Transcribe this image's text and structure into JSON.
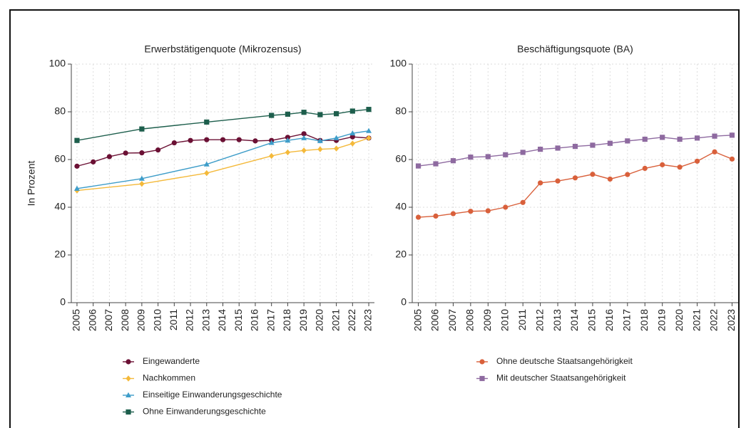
{
  "chart_data": [
    {
      "type": "line",
      "title": "Erwerbstätigenquote (Mikrozensus)",
      "ylabel": "In Prozent",
      "xlim": [
        2004.65,
        2023.35
      ],
      "xticks": [
        2005,
        2006,
        2007,
        2008,
        2009,
        2010,
        2011,
        2012,
        2013,
        2014,
        2015,
        2016,
        2017,
        2018,
        2019,
        2020,
        2021,
        2022,
        2023
      ],
      "ylim": [
        0,
        100
      ],
      "yticks": [
        0,
        20,
        40,
        60,
        80,
        100
      ],
      "grid": true,
      "series": [
        {
          "name": "Eingewanderte",
          "color": "#6b1034",
          "marker": "circle",
          "x": [
            2005,
            2006,
            2007,
            2008,
            2009,
            2010,
            2011,
            2012,
            2013,
            2014,
            2015,
            2016,
            2017,
            2018,
            2019,
            2020,
            2021,
            2022,
            2023
          ],
          "values": [
            57.2,
            59,
            61.2,
            62.7,
            62.8,
            64,
            67,
            68,
            68.3,
            68.3,
            68.3,
            67.8,
            68,
            69.3,
            70.8,
            68,
            68,
            69.5,
            69
          ]
        },
        {
          "name": "Nachkommen",
          "color": "#f4b93a",
          "marker": "diamond",
          "x": [
            2005,
            2009,
            2013,
            2017,
            2018,
            2019,
            2020,
            2021,
            2022,
            2023
          ],
          "values": [
            47,
            49.8,
            54.3,
            61.5,
            63,
            63.8,
            64.3,
            64.6,
            66.7,
            69
          ]
        },
        {
          "name": "Einseitige Einwanderungsgeschichte",
          "color": "#3e9dc9",
          "marker": "triangle",
          "x": [
            2005,
            2009,
            2013,
            2017,
            2018,
            2019,
            2020,
            2021,
            2022,
            2023
          ],
          "values": [
            47.8,
            52,
            58,
            67,
            68,
            69,
            67.8,
            69,
            71,
            72
          ]
        },
        {
          "name": "Ohne Einwanderungsgeschichte",
          "color": "#1d5e4c",
          "marker": "square",
          "x": [
            2005,
            2009,
            2013,
            2017,
            2018,
            2019,
            2020,
            2021,
            2022,
            2023
          ],
          "values": [
            68,
            72.8,
            75.7,
            78.5,
            79,
            79.8,
            78.8,
            79.2,
            80.3,
            81
          ]
        }
      ]
    },
    {
      "type": "line",
      "title": "Beschäftigungsquote (BA)",
      "xlim": [
        2004.65,
        2023.35
      ],
      "xticks": [
        2005,
        2006,
        2007,
        2008,
        2009,
        2010,
        2011,
        2012,
        2013,
        2014,
        2015,
        2016,
        2017,
        2018,
        2019,
        2020,
        2021,
        2022,
        2023
      ],
      "ylim": [
        0,
        100
      ],
      "yticks": [
        0,
        20,
        40,
        60,
        80,
        100
      ],
      "grid": true,
      "series": [
        {
          "name": "Ohne deutsche Staatsangehörigkeit",
          "color": "#d9603b",
          "marker": "circle",
          "x": [
            2005,
            2006,
            2007,
            2008,
            2009,
            2010,
            2011,
            2012,
            2013,
            2014,
            2015,
            2016,
            2017,
            2018,
            2019,
            2020,
            2021,
            2022,
            2023
          ],
          "values": [
            35.8,
            36.3,
            37.3,
            38.3,
            38.5,
            40,
            42,
            50.2,
            51,
            52.3,
            53.8,
            51.8,
            53.7,
            56.3,
            57.8,
            56.8,
            59.3,
            63.2,
            60.2
          ]
        },
        {
          "name": "Mit deutscher Staatsangehörigkeit",
          "color": "#8e6aa0",
          "marker": "square",
          "x": [
            2005,
            2006,
            2007,
            2008,
            2009,
            2010,
            2011,
            2012,
            2013,
            2014,
            2015,
            2016,
            2017,
            2018,
            2019,
            2020,
            2021,
            2022,
            2023
          ],
          "values": [
            57.3,
            58.2,
            59.5,
            61,
            61.2,
            62,
            63,
            64.3,
            64.8,
            65.5,
            66,
            66.8,
            67.8,
            68.5,
            69.3,
            68.5,
            69,
            69.8,
            70.2
          ]
        }
      ]
    }
  ]
}
